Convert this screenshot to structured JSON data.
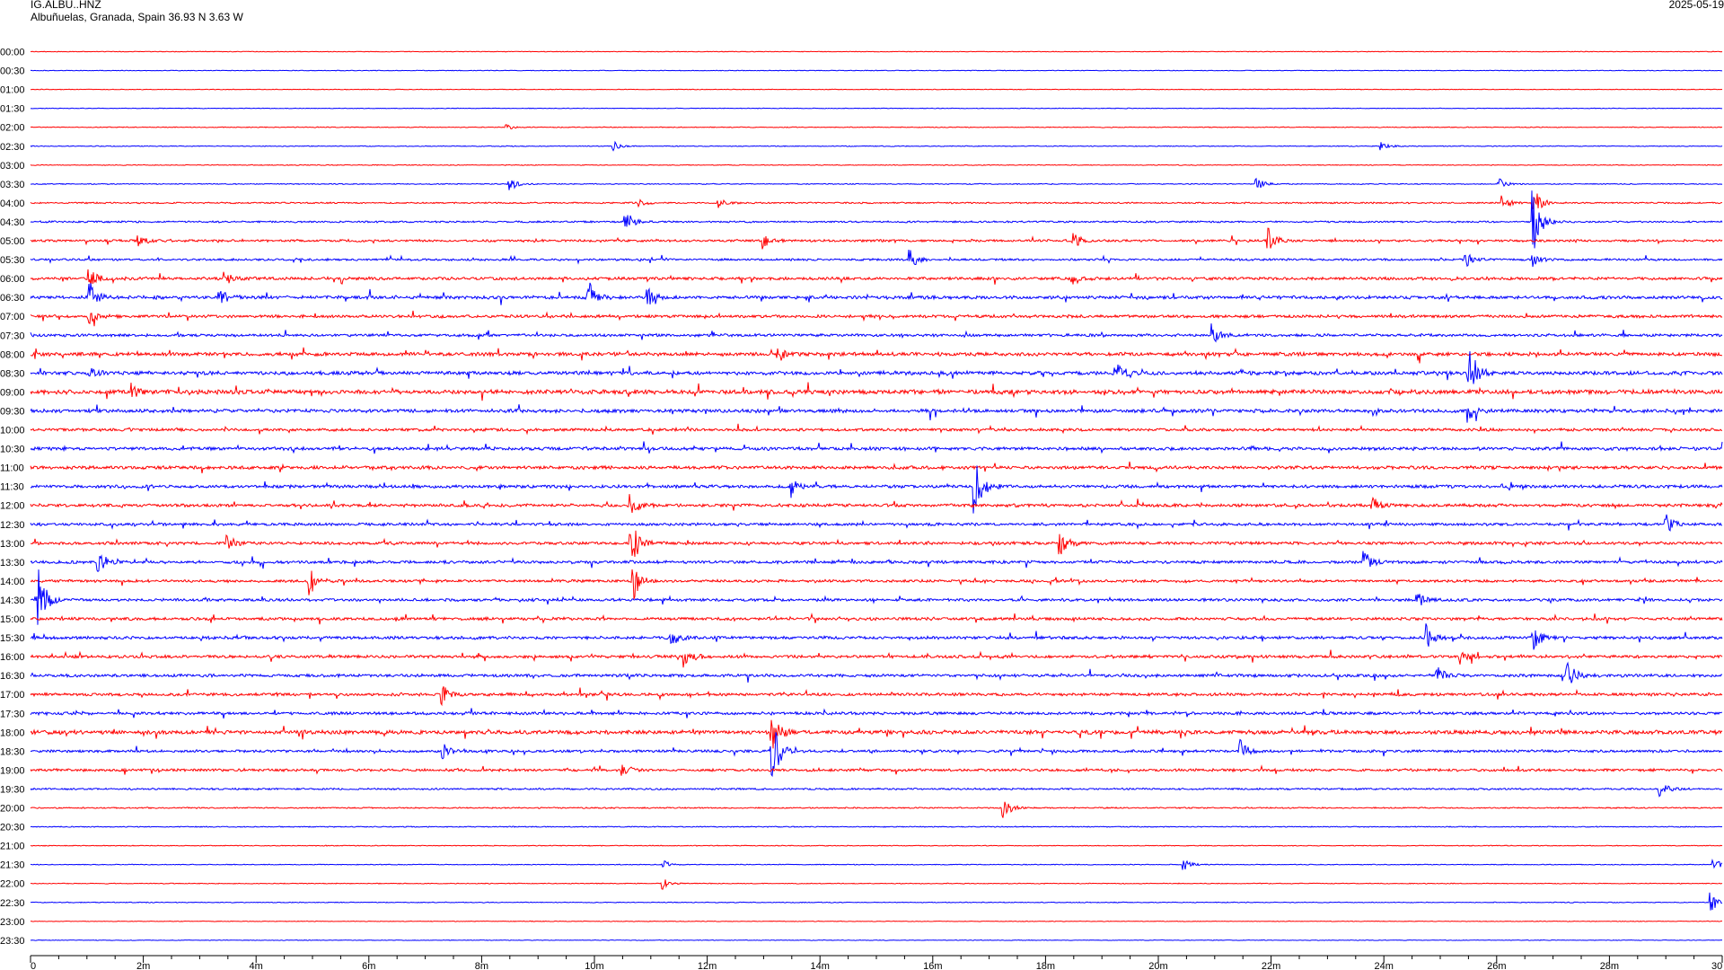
{
  "header": {
    "station": "IG.ALBU..HNZ",
    "location": "Albuñuelas, Granada, Spain  36.93 N 3.63 W",
    "date": "2025-05-19"
  },
  "chart_data": {
    "type": "line",
    "title": "",
    "xlabel": "",
    "ylabel": "",
    "rows": [
      "00:00",
      "00:30",
      "01:00",
      "01:30",
      "02:00",
      "02:30",
      "03:00",
      "03:30",
      "04:00",
      "04:30",
      "05:00",
      "05:30",
      "06:00",
      "06:30",
      "07:00",
      "07:30",
      "08:00",
      "08:30",
      "09:00",
      "09:30",
      "10:00",
      "10:30",
      "11:00",
      "11:30",
      "12:00",
      "12:30",
      "13:00",
      "13:30",
      "14:00",
      "14:30",
      "15:00",
      "15:30",
      "16:00",
      "16:30",
      "17:00",
      "17:30",
      "18:00",
      "18:30",
      "19:00",
      "19:30",
      "20:00",
      "20:30",
      "21:00",
      "21:30",
      "22:00",
      "22:30",
      "23:00",
      "23:30"
    ],
    "x_ticks": [
      "0",
      "2m",
      "4m",
      "6m",
      "8m",
      "10m",
      "12m",
      "14m",
      "16m",
      "18m",
      "20m",
      "22m",
      "24m",
      "26m",
      "28m",
      "30"
    ],
    "x_range_minutes": [
      0,
      30
    ],
    "row_colors": [
      "#ff0000",
      "#0000ff"
    ],
    "noise_by_row": [
      0.4,
      0.4,
      0.4,
      0.4,
      0.5,
      0.5,
      0.5,
      0.6,
      0.9,
      1.1,
      1.4,
      1.3,
      1.8,
      2.0,
      1.8,
      1.7,
      2.2,
      2.3,
      2.6,
      2.2,
      1.7,
      2.0,
      2.0,
      1.9,
      1.9,
      1.7,
      1.8,
      1.8,
      1.6,
      1.7,
      1.8,
      1.8,
      1.8,
      1.8,
      1.8,
      1.8,
      2.4,
      1.6,
      1.6,
      1.1,
      0.8,
      0.6,
      0.5,
      0.5,
      0.5,
      0.5,
      0.4,
      0.4
    ],
    "events": [
      {
        "row": 4,
        "minute": 8.45,
        "amplitude": 3
      },
      {
        "row": 5,
        "minute": 10.35,
        "amplitude": 6
      },
      {
        "row": 5,
        "minute": 23.95,
        "amplitude": 6
      },
      {
        "row": 7,
        "minute": 8.5,
        "amplitude": 9
      },
      {
        "row": 7,
        "minute": 21.75,
        "amplitude": 7
      },
      {
        "row": 7,
        "minute": 26.05,
        "amplitude": 6
      },
      {
        "row": 8,
        "minute": 10.8,
        "amplitude": 5
      },
      {
        "row": 8,
        "minute": 12.2,
        "amplitude": 6
      },
      {
        "row": 8,
        "minute": 26.1,
        "amplitude": 9
      },
      {
        "row": 8,
        "minute": 26.65,
        "amplitude": 20
      },
      {
        "row": 9,
        "minute": 1.05,
        "amplitude": 0
      },
      {
        "row": 9,
        "minute": 10.55,
        "amplitude": 14
      },
      {
        "row": 9,
        "minute": 26.65,
        "amplitude": 40
      },
      {
        "row": 10,
        "minute": 1.9,
        "amplitude": 8
      },
      {
        "row": 10,
        "minute": 13.0,
        "amplitude": 9
      },
      {
        "row": 10,
        "minute": 18.5,
        "amplitude": 8
      },
      {
        "row": 10,
        "minute": 21.95,
        "amplitude": 14
      },
      {
        "row": 11,
        "minute": 15.6,
        "amplitude": 12
      },
      {
        "row": 11,
        "minute": 25.45,
        "amplitude": 8
      },
      {
        "row": 11,
        "minute": 26.65,
        "amplitude": 8
      },
      {
        "row": 12,
        "minute": 1.05,
        "amplitude": 10
      },
      {
        "row": 12,
        "minute": 3.45,
        "amplitude": 8
      },
      {
        "row": 12,
        "minute": 18.45,
        "amplitude": 10
      },
      {
        "row": 13,
        "minute": 1.05,
        "amplitude": 18
      },
      {
        "row": 13,
        "minute": 3.35,
        "amplitude": 12
      },
      {
        "row": 13,
        "minute": 9.9,
        "amplitude": 18
      },
      {
        "row": 13,
        "minute": 10.95,
        "amplitude": 10
      },
      {
        "row": 14,
        "minute": 1.05,
        "amplitude": 8
      },
      {
        "row": 15,
        "minute": 20.95,
        "amplitude": 12
      },
      {
        "row": 16,
        "minute": 13.25,
        "amplitude": 9
      },
      {
        "row": 17,
        "minute": 1.05,
        "amplitude": 6
      },
      {
        "row": 17,
        "minute": 19.25,
        "amplitude": 14
      },
      {
        "row": 17,
        "minute": 25.5,
        "amplitude": 38
      },
      {
        "row": 18,
        "minute": 1.8,
        "amplitude": 8
      },
      {
        "row": 19,
        "minute": 25.5,
        "amplitude": 12
      },
      {
        "row": 23,
        "minute": 16.75,
        "amplitude": 36
      },
      {
        "row": 23,
        "minute": 13.5,
        "amplitude": 8
      },
      {
        "row": 24,
        "minute": 10.65,
        "amplitude": 12
      },
      {
        "row": 24,
        "minute": 23.8,
        "amplitude": 10
      },
      {
        "row": 25,
        "minute": 29.0,
        "amplitude": 12
      },
      {
        "row": 26,
        "minute": 10.65,
        "amplitude": 30
      },
      {
        "row": 26,
        "minute": 18.25,
        "amplitude": 20
      },
      {
        "row": 26,
        "minute": 3.5,
        "amplitude": 9
      },
      {
        "row": 27,
        "minute": 1.2,
        "amplitude": 14
      },
      {
        "row": 27,
        "minute": 23.65,
        "amplitude": 12
      },
      {
        "row": 28,
        "minute": 10.7,
        "amplitude": 20
      },
      {
        "row": 28,
        "minute": 4.95,
        "amplitude": 18
      },
      {
        "row": 29,
        "minute": 0.15,
        "amplitude": 36
      },
      {
        "row": 29,
        "minute": 24.6,
        "amplitude": 8
      },
      {
        "row": 31,
        "minute": 11.35,
        "amplitude": 12
      },
      {
        "row": 31,
        "minute": 26.65,
        "amplitude": 14
      },
      {
        "row": 31,
        "minute": 24.75,
        "amplitude": 16
      },
      {
        "row": 32,
        "minute": 11.6,
        "amplitude": 14
      },
      {
        "row": 32,
        "minute": 25.35,
        "amplitude": 8
      },
      {
        "row": 33,
        "minute": 27.25,
        "amplitude": 22
      },
      {
        "row": 33,
        "minute": 24.95,
        "amplitude": 10
      },
      {
        "row": 34,
        "minute": 7.3,
        "amplitude": 12
      },
      {
        "row": 36,
        "minute": 13.15,
        "amplitude": 24
      },
      {
        "row": 37,
        "minute": 13.15,
        "amplitude": 40
      },
      {
        "row": 37,
        "minute": 21.45,
        "amplitude": 14
      },
      {
        "row": 37,
        "minute": 7.3,
        "amplitude": 10
      },
      {
        "row": 38,
        "minute": 10.5,
        "amplitude": 7
      },
      {
        "row": 39,
        "minute": 28.9,
        "amplitude": 10
      },
      {
        "row": 40,
        "minute": 17.25,
        "amplitude": 16
      },
      {
        "row": 43,
        "minute": 11.2,
        "amplitude": 6
      },
      {
        "row": 43,
        "minute": 20.45,
        "amplitude": 7
      },
      {
        "row": 43,
        "minute": 29.85,
        "amplitude": 7
      },
      {
        "row": 44,
        "minute": 11.2,
        "amplitude": 7
      },
      {
        "row": 45,
        "minute": 29.8,
        "amplitude": 12
      }
    ]
  }
}
